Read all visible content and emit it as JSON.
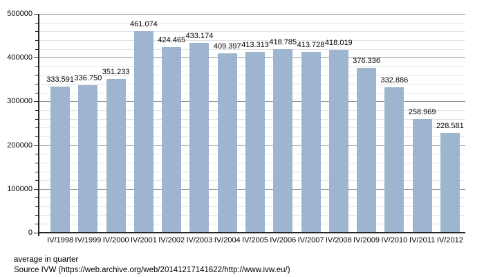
{
  "chart_data": {
    "type": "bar",
    "title": "",
    "xlabel": "",
    "ylabel": "",
    "categories": [
      "IV/1998",
      "IV/1999",
      "IV/2000",
      "IV/2001",
      "IV/2002",
      "IV/2003",
      "IV/2004",
      "IV/2005",
      "IV/2006",
      "IV/2007",
      "IV/2008",
      "IV/2009",
      "IV/2010",
      "IV/2011",
      "IV/2012"
    ],
    "values": [
      333591,
      336750,
      351233,
      461074,
      424465,
      433174,
      409397,
      413313,
      418785,
      413728,
      418019,
      376336,
      332886,
      258969,
      228581
    ],
    "value_labels": [
      "333.591",
      "336.750",
      "351.233",
      "461.074",
      "424.465",
      "433.174",
      "409.397",
      "413.313",
      "418.785",
      "413.728",
      "418.019",
      "376.336",
      "332.886",
      "258.969",
      "228.581"
    ],
    "ylim": [
      0,
      500000
    ],
    "y_major_step": 100000,
    "y_minor_step": 20000,
    "grid": true,
    "legend": "none",
    "bar_color": "#9db5cf",
    "axis_color": "#262626",
    "major_grid_color": "#8f8f8f",
    "minor_grid_color": "#e3e3e3",
    "label_color": "#000000"
  },
  "footer": {
    "line1": "average in quarter",
    "line2": "Source IVW (https://web.archive.org/web/20141217141622/http://www.ivw.eu/)"
  }
}
